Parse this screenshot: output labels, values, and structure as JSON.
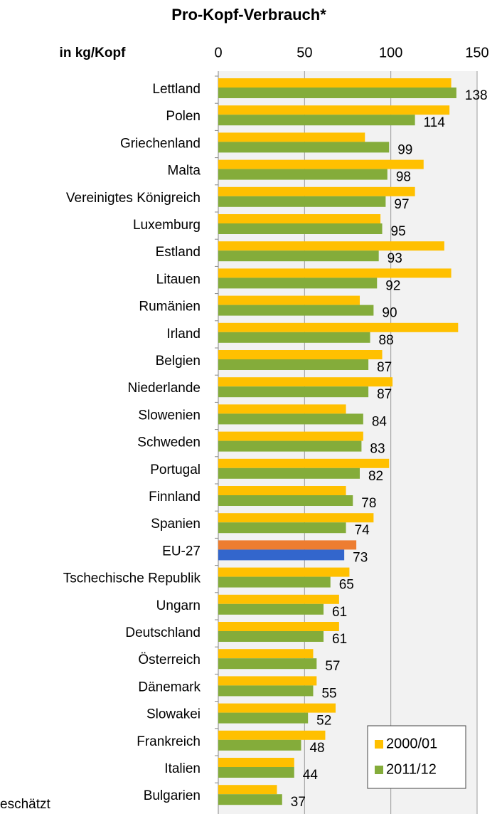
{
  "chart_data": {
    "type": "hbar",
    "title": "Pro-Kopf-Verbrauch*",
    "axis_label": "in kg/Kopf",
    "annotation": "eschätzt",
    "categories": [
      "Lettland",
      "Polen",
      "Griechenland",
      "Malta",
      "Vereinigtes Königreich",
      "Luxemburg",
      "Estland",
      "Litauen",
      "Rumänien",
      "Irland",
      "Belgien",
      "Niederlande",
      "Slowenien",
      "Schweden",
      "Portugal",
      "Finnland",
      "Spanien",
      "EU-27",
      "Tschechische Republik",
      "Ungarn",
      "Deutschland",
      "Österreich",
      "Dänemark",
      "Slowakei",
      "Frankreich",
      "Italien",
      "Bulgarien"
    ],
    "series": [
      {
        "name": "2000/01",
        "color": "#ffc000",
        "highlight_color": "#ed7d31",
        "values": [
          135,
          134,
          85,
          119,
          114,
          94,
          131,
          135,
          82,
          139,
          95,
          101,
          74,
          84,
          99,
          74,
          90,
          80,
          76,
          70,
          70,
          55,
          57,
          68,
          62,
          44,
          34
        ]
      },
      {
        "name": "2011/12",
        "color": "#84ac3a",
        "highlight_color": "#3366cc",
        "labels": true,
        "values": [
          138,
          114,
          99,
          98,
          97,
          95,
          93,
          92,
          90,
          88,
          87,
          87,
          84,
          83,
          82,
          78,
          74,
          73,
          65,
          61,
          61,
          57,
          55,
          52,
          48,
          44,
          37
        ]
      }
    ],
    "highlight_category": "EU-27",
    "xlim": [
      0,
      150
    ],
    "xticks": [
      0,
      50,
      100,
      150
    ],
    "grid": true,
    "legend": "lower right"
  }
}
